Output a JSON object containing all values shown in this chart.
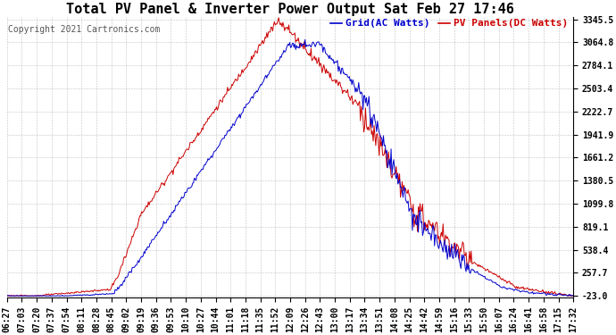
{
  "title": "Total PV Panel & Inverter Power Output Sat Feb 27 17:46",
  "copyright": "Copyright 2021 Cartronics.com",
  "legend_blue": "Grid(AC Watts)",
  "legend_red": "PV Panels(DC Watts)",
  "color_blue": "#0000cc",
  "color_red": "#cc0000",
  "background_color": "#ffffff",
  "grid_color": "#999999",
  "yticks": [
    -23.0,
    257.7,
    538.4,
    819.1,
    1099.8,
    1380.5,
    1661.2,
    1941.9,
    2222.7,
    2503.4,
    2784.1,
    3064.8,
    3345.5
  ],
  "xtick_labels": [
    "06:27",
    "07:03",
    "07:20",
    "07:37",
    "07:54",
    "08:11",
    "08:28",
    "08:45",
    "09:02",
    "09:19",
    "09:36",
    "09:53",
    "10:10",
    "10:27",
    "10:44",
    "11:01",
    "11:18",
    "11:35",
    "11:52",
    "12:09",
    "12:26",
    "12:43",
    "13:00",
    "13:17",
    "13:34",
    "13:51",
    "14:08",
    "14:25",
    "14:42",
    "14:59",
    "15:16",
    "15:33",
    "15:50",
    "16:07",
    "16:24",
    "16:41",
    "16:58",
    "17:15",
    "17:32"
  ],
  "title_fontsize": 11,
  "legend_fontsize": 8,
  "tick_fontsize": 7,
  "copyright_fontsize": 7
}
